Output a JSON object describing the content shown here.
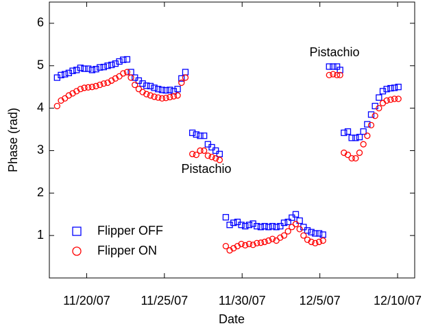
{
  "chart_data": {
    "type": "scatter",
    "x_label": "Date",
    "y_label": "Phase (rad)",
    "x": [
      322.1,
      322.35,
      322.6,
      322.85,
      323.1,
      323.35,
      323.6,
      323.85,
      324.1,
      324.35,
      324.6,
      324.85,
      325.1,
      325.35,
      325.6,
      325.85,
      326.1,
      326.35,
      326.6,
      326.85,
      327.1,
      327.35,
      327.6,
      327.85,
      328.1,
      328.35,
      328.6,
      328.85,
      329.1,
      329.35,
      329.6,
      329.85,
      330.1,
      330.35,
      330.8,
      331.05,
      331.3,
      331.55,
      331.8,
      332.05,
      332.3,
      332.55,
      332.95,
      333.2,
      333.45,
      333.7,
      333.95,
      334.2,
      334.45,
      334.7,
      334.95,
      335.2,
      335.45,
      335.7,
      335.95,
      336.2,
      336.45,
      336.7,
      336.95,
      337.2,
      337.45,
      337.7,
      337.95,
      338.2,
      338.45,
      338.7,
      338.95,
      339.2,
      339.6,
      339.85,
      340.1,
      340.3,
      340.55,
      340.8,
      341.05,
      341.3,
      341.55,
      341.8,
      342.05,
      342.3,
      342.55,
      342.8,
      343.05,
      343.3,
      343.55,
      343.8,
      344.05
    ],
    "series": [
      {
        "name": "Flipper OFF",
        "color": "#0000ff",
        "marker": "square",
        "values": [
          4.72,
          4.78,
          4.8,
          4.83,
          4.88,
          4.9,
          4.95,
          4.93,
          4.93,
          4.9,
          4.92,
          4.96,
          4.97,
          5.0,
          5.02,
          5.05,
          5.1,
          5.14,
          5.15,
          4.85,
          4.72,
          4.65,
          4.58,
          4.53,
          4.52,
          4.48,
          4.45,
          4.43,
          4.42,
          4.43,
          4.4,
          4.45,
          4.7,
          4.85,
          3.42,
          3.38,
          3.35,
          3.35,
          3.15,
          3.08,
          3.0,
          2.92,
          1.43,
          1.25,
          1.3,
          1.32,
          1.25,
          1.22,
          1.25,
          1.28,
          1.22,
          1.2,
          1.22,
          1.2,
          1.22,
          1.2,
          1.22,
          1.3,
          1.32,
          1.42,
          1.5,
          1.35,
          1.2,
          1.12,
          1.08,
          1.05,
          1.05,
          1.02,
          4.98,
          4.98,
          4.98,
          4.9,
          3.42,
          3.45,
          3.3,
          3.3,
          3.32,
          3.45,
          3.62,
          3.85,
          4.05,
          4.25,
          4.4,
          4.45,
          4.47,
          4.48,
          4.5
        ]
      },
      {
        "name": "Flipper ON",
        "color": "#ff0000",
        "marker": "circle",
        "values": [
          4.05,
          4.18,
          4.23,
          4.3,
          4.35,
          4.4,
          4.45,
          4.48,
          4.49,
          4.5,
          4.52,
          4.55,
          4.58,
          4.6,
          4.65,
          4.7,
          4.75,
          4.82,
          4.85,
          4.72,
          4.55,
          4.45,
          4.38,
          4.33,
          4.3,
          4.27,
          4.25,
          4.23,
          4.24,
          4.26,
          4.28,
          4.3,
          4.6,
          4.72,
          2.92,
          2.9,
          3.0,
          3.0,
          2.88,
          2.85,
          2.82,
          2.78,
          0.75,
          0.65,
          0.7,
          0.75,
          0.8,
          0.77,
          0.8,
          0.78,
          0.82,
          0.83,
          0.85,
          0.88,
          0.92,
          0.88,
          0.95,
          1.0,
          1.1,
          1.2,
          1.27,
          1.15,
          1.0,
          0.9,
          0.85,
          0.82,
          0.85,
          0.88,
          4.78,
          4.8,
          4.78,
          4.78,
          2.95,
          2.9,
          2.82,
          2.82,
          2.95,
          3.15,
          3.35,
          3.6,
          3.82,
          4.0,
          4.12,
          4.18,
          4.2,
          4.22,
          4.22
        ]
      }
    ],
    "xlim": [
      321.6,
      345.1
    ],
    "xticks": [
      {
        "value": 324,
        "label": "11/20/07"
      },
      {
        "value": 329,
        "label": "11/25/07"
      },
      {
        "value": 334,
        "label": "11/30/07"
      },
      {
        "value": 339,
        "label": "12/5/07"
      },
      {
        "value": 344,
        "label": "12/10/07"
      }
    ],
    "ylim": [
      0,
      6.5
    ],
    "yticks": [
      1,
      2,
      3,
      4,
      5,
      6
    ],
    "annotations": [
      "Pistachio",
      "Pistachio"
    ],
    "legend": "lower left"
  }
}
